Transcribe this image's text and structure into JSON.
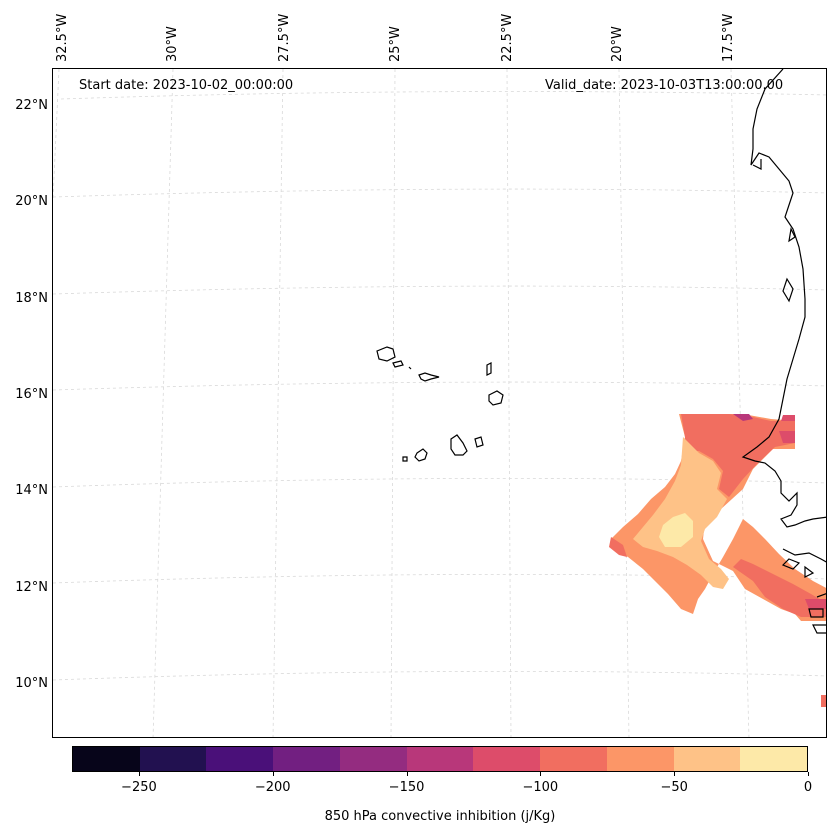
{
  "header": {
    "start_date": "Start date: 2023-10-02_00:00:00",
    "valid_date": "Valid_date: 2023-10-03T13:00:00.00"
  },
  "longitude_labels": [
    "32.5°W",
    "30°W",
    "27.5°W",
    "25°W",
    "22.5°W",
    "20°W",
    "17.5°W"
  ],
  "latitude_labels": [
    "22°N",
    "20°N",
    "18°N",
    "16°N",
    "14°N",
    "12°N",
    "10°N"
  ],
  "colorbar": {
    "label": "850 hPa convective inhibition (j/Kg)",
    "ticks": [
      "−250",
      "−200",
      "−150",
      "−100",
      "−50",
      "0"
    ],
    "colors": [
      "#07051a",
      "#221150",
      "#4a1079",
      "#721f81",
      "#942c80",
      "#b8377a",
      "#dd4c6a",
      "#f16e60",
      "#fc9667",
      "#fec287",
      "#fde9a8"
    ]
  },
  "map": {
    "coastline_color": "#000000",
    "gridline_color": "#d9d9d9"
  }
}
